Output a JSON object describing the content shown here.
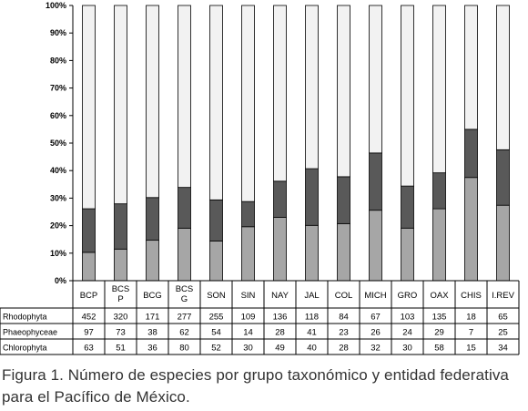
{
  "chart_data": {
    "type": "bar",
    "stacked": "percent",
    "categories": [
      "BCP",
      "BCS P",
      "BCG",
      "BCS G",
      "SON",
      "SIN",
      "NAY",
      "JAL",
      "COL",
      "MICH",
      "GRO",
      "OAX",
      "CHIS",
      "I.REV"
    ],
    "series": [
      {
        "name": "Rhodophyta",
        "color": "#f2f2f2",
        "values": [
          452,
          320,
          171,
          277,
          255,
          109,
          136,
          118,
          84,
          67,
          103,
          135,
          18,
          65
        ]
      },
      {
        "name": "Phaeophyceae",
        "color": "#595959",
        "values": [
          97,
          73,
          38,
          62,
          54,
          14,
          28,
          41,
          23,
          26,
          24,
          29,
          7,
          25
        ]
      },
      {
        "name": "Chlorophyta",
        "color": "#a6a6a6",
        "values": [
          63,
          51,
          36,
          80,
          52,
          30,
          49,
          40,
          28,
          32,
          30,
          58,
          15,
          34
        ]
      }
    ],
    "y_ticks": [
      "0%",
      "10%",
      "20%",
      "30%",
      "40%",
      "50%",
      "60%",
      "70%",
      "80%",
      "90%",
      "100%"
    ],
    "ylim": [
      0,
      100
    ],
    "grid": false,
    "legend": "data-table below chart"
  },
  "caption": "Figura 1. Número de especies por grupo taxonómico y entidad federativa para el Pacífico de México."
}
